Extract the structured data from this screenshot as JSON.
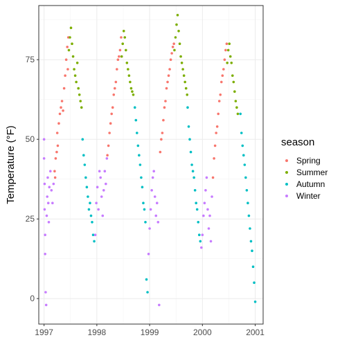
{
  "chart_data": {
    "type": "scatter",
    "xlabel": "",
    "ylabel": "Temperature (°F)",
    "xlim": [
      1996.9,
      2001.15
    ],
    "ylim": [
      -8,
      92
    ],
    "x_ticks": [
      1997,
      1998,
      1999,
      2000,
      2001
    ],
    "x_tick_labels": [
      "1997",
      "1998",
      "1999",
      "2000",
      "2001"
    ],
    "y_ticks": [
      0,
      25,
      50,
      75
    ],
    "y_tick_labels": [
      "0",
      "25",
      "50",
      "75"
    ],
    "grid": true,
    "legend": {
      "title": "season",
      "position": "right",
      "entries": [
        "Spring",
        "Summer",
        "Autumn",
        "Winter"
      ]
    },
    "colors": {
      "Spring": "#F8766D",
      "Summer": "#7CAE00",
      "Autumn": "#00BFC4",
      "Winter": "#C77CFF"
    },
    "series": [
      {
        "name": "Spring",
        "points": [
          [
            1997.2,
            40
          ],
          [
            1997.21,
            38
          ],
          [
            1997.22,
            44
          ],
          [
            1997.24,
            46
          ],
          [
            1997.25,
            52
          ],
          [
            1997.26,
            48
          ],
          [
            1997.28,
            55
          ],
          [
            1997.3,
            58
          ],
          [
            1997.32,
            60
          ],
          [
            1997.34,
            62
          ],
          [
            1997.36,
            59
          ],
          [
            1997.38,
            66
          ],
          [
            1997.4,
            70
          ],
          [
            1997.42,
            75
          ],
          [
            1997.44,
            79
          ],
          [
            1997.45,
            72
          ],
          [
            1997.46,
            82
          ],
          [
            1998.2,
            45
          ],
          [
            1998.22,
            48
          ],
          [
            1998.24,
            52
          ],
          [
            1998.26,
            55
          ],
          [
            1998.28,
            58
          ],
          [
            1998.3,
            60
          ],
          [
            1998.32,
            64
          ],
          [
            1998.34,
            66
          ],
          [
            1998.36,
            68
          ],
          [
            1998.38,
            72
          ],
          [
            1998.4,
            75
          ],
          [
            1998.42,
            76
          ],
          [
            1998.44,
            78
          ],
          [
            1998.46,
            82
          ],
          [
            1999.2,
            46
          ],
          [
            1999.22,
            50
          ],
          [
            1999.24,
            52
          ],
          [
            1999.26,
            56
          ],
          [
            1999.28,
            60
          ],
          [
            1999.3,
            62
          ],
          [
            1999.32,
            66
          ],
          [
            1999.34,
            68
          ],
          [
            1999.36,
            70
          ],
          [
            1999.38,
            72
          ],
          [
            1999.4,
            75
          ],
          [
            1999.42,
            77
          ],
          [
            1999.44,
            79
          ],
          [
            1999.46,
            80
          ],
          [
            2000.2,
            38
          ],
          [
            2000.22,
            44
          ],
          [
            2000.24,
            48
          ],
          [
            2000.26,
            52
          ],
          [
            2000.28,
            54
          ],
          [
            2000.3,
            58
          ],
          [
            2000.32,
            62
          ],
          [
            2000.34,
            64
          ],
          [
            2000.36,
            68
          ],
          [
            2000.38,
            70
          ],
          [
            2000.4,
            72
          ],
          [
            2000.42,
            75
          ],
          [
            2000.44,
            78
          ],
          [
            2000.46,
            80
          ]
        ]
      },
      {
        "name": "Summer",
        "points": [
          [
            1997.47,
            78
          ],
          [
            1997.49,
            82
          ],
          [
            1997.51,
            85
          ],
          [
            1997.53,
            80
          ],
          [
            1997.55,
            76
          ],
          [
            1997.57,
            72
          ],
          [
            1997.59,
            70
          ],
          [
            1997.61,
            68
          ],
          [
            1997.63,
            74
          ],
          [
            1997.65,
            66
          ],
          [
            1997.67,
            64
          ],
          [
            1997.69,
            62
          ],
          [
            1997.71,
            60
          ],
          [
            1998.47,
            76
          ],
          [
            1998.49,
            80
          ],
          [
            1998.51,
            84
          ],
          [
            1998.53,
            82
          ],
          [
            1998.55,
            78
          ],
          [
            1998.57,
            74
          ],
          [
            1998.59,
            72
          ],
          [
            1998.61,
            70
          ],
          [
            1998.63,
            68
          ],
          [
            1998.65,
            66
          ],
          [
            1998.67,
            65
          ],
          [
            1998.69,
            64
          ],
          [
            1999.47,
            78
          ],
          [
            1999.49,
            82
          ],
          [
            1999.51,
            86
          ],
          [
            1999.53,
            89
          ],
          [
            1999.55,
            84
          ],
          [
            1999.57,
            80
          ],
          [
            1999.59,
            76
          ],
          [
            1999.61,
            74
          ],
          [
            1999.63,
            72
          ],
          [
            1999.65,
            70
          ],
          [
            1999.67,
            68
          ],
          [
            1999.69,
            66
          ],
          [
            1999.71,
            64
          ],
          [
            2000.47,
            74
          ],
          [
            2000.49,
            78
          ],
          [
            2000.51,
            80
          ],
          [
            2000.53,
            76
          ],
          [
            2000.55,
            74
          ],
          [
            2000.57,
            70
          ],
          [
            2000.59,
            68
          ],
          [
            2000.61,
            65
          ],
          [
            2000.63,
            62
          ],
          [
            2000.65,
            60
          ],
          [
            2000.67,
            58
          ]
        ]
      },
      {
        "name": "Autumn",
        "points": [
          [
            1997.73,
            50
          ],
          [
            1997.75,
            45
          ],
          [
            1997.77,
            42
          ],
          [
            1997.79,
            38
          ],
          [
            1997.81,
            35
          ],
          [
            1997.83,
            32
          ],
          [
            1997.85,
            28
          ],
          [
            1997.87,
            30
          ],
          [
            1997.89,
            26
          ],
          [
            1997.91,
            24
          ],
          [
            1997.93,
            20
          ],
          [
            1997.95,
            18
          ],
          [
            1998.72,
            60
          ],
          [
            1998.74,
            56
          ],
          [
            1998.76,
            52
          ],
          [
            1998.78,
            48
          ],
          [
            1998.8,
            45
          ],
          [
            1998.82,
            42
          ],
          [
            1998.84,
            38
          ],
          [
            1998.86,
            35
          ],
          [
            1998.88,
            30
          ],
          [
            1998.9,
            28
          ],
          [
            1998.92,
            24
          ],
          [
            1998.94,
            6
          ],
          [
            1998.96,
            2
          ],
          [
            1999.72,
            60
          ],
          [
            1999.74,
            54
          ],
          [
            1999.76,
            50
          ],
          [
            1999.78,
            46
          ],
          [
            1999.8,
            42
          ],
          [
            1999.82,
            40
          ],
          [
            1999.84,
            38
          ],
          [
            1999.86,
            34
          ],
          [
            1999.88,
            30
          ],
          [
            1999.9,
            28
          ],
          [
            1999.92,
            24
          ],
          [
            1999.94,
            20
          ],
          [
            1999.96,
            18
          ],
          [
            2000.72,
            58
          ],
          [
            2000.74,
            52
          ],
          [
            2000.76,
            48
          ],
          [
            2000.78,
            45
          ],
          [
            2000.8,
            42
          ],
          [
            2000.82,
            38
          ],
          [
            2000.84,
            34
          ],
          [
            2000.86,
            30
          ],
          [
            2000.88,
            26
          ],
          [
            2000.9,
            22
          ],
          [
            2000.92,
            18
          ],
          [
            2000.94,
            15
          ],
          [
            2000.96,
            10
          ],
          [
            2000.98,
            5
          ],
          [
            2001.0,
            -1
          ]
        ]
      },
      {
        "name": "Winter",
        "points": [
          [
            1997.0,
            50
          ],
          [
            1997.0,
            44
          ],
          [
            1997.01,
            36
          ],
          [
            1997.01,
            28
          ],
          [
            1997.02,
            20
          ],
          [
            1997.02,
            14
          ],
          [
            1997.03,
            2
          ],
          [
            1997.04,
            -2
          ],
          [
            1997.05,
            26
          ],
          [
            1997.06,
            32
          ],
          [
            1997.07,
            38
          ],
          [
            1997.08,
            30
          ],
          [
            1997.09,
            24
          ],
          [
            1997.1,
            35
          ],
          [
            1997.12,
            40
          ],
          [
            1997.14,
            34
          ],
          [
            1997.16,
            30
          ],
          [
            1997.18,
            36
          ],
          [
            1997.97,
            20
          ],
          [
            1997.99,
            30
          ],
          [
            1998.01,
            35
          ],
          [
            1998.03,
            28
          ],
          [
            1998.05,
            40
          ],
          [
            1998.07,
            38
          ],
          [
            1998.09,
            32
          ],
          [
            1998.11,
            26
          ],
          [
            1998.13,
            34
          ],
          [
            1998.15,
            40
          ],
          [
            1998.17,
            36
          ],
          [
            1998.19,
            44
          ],
          [
            1998.98,
            14
          ],
          [
            1999.0,
            22
          ],
          [
            1999.02,
            28
          ],
          [
            1999.04,
            34
          ],
          [
            1999.06,
            38
          ],
          [
            1999.08,
            40
          ],
          [
            1999.1,
            32
          ],
          [
            1999.12,
            26
          ],
          [
            1999.14,
            30
          ],
          [
            1999.16,
            24
          ],
          [
            1999.18,
            -2
          ],
          [
            1999.98,
            16
          ],
          [
            2000.0,
            20
          ],
          [
            2000.02,
            26
          ],
          [
            2000.04,
            30
          ],
          [
            2000.06,
            34
          ],
          [
            2000.08,
            38
          ],
          [
            2000.1,
            28
          ],
          [
            2000.12,
            22
          ],
          [
            2000.14,
            26
          ],
          [
            2000.16,
            18
          ],
          [
            2000.18,
            32
          ]
        ]
      }
    ]
  }
}
